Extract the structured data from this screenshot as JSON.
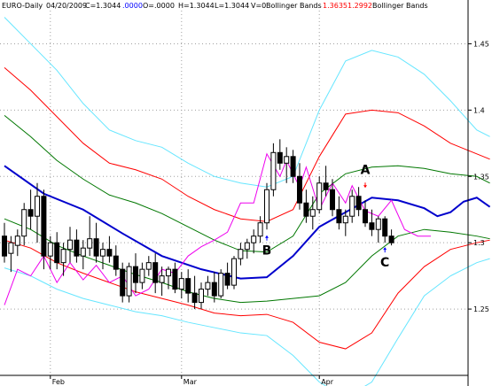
{
  "header": {
    "symbol": "EURO-Daily",
    "date": "04/20/2009",
    "close": "C=1.3044",
    "change": ".0000",
    "open": "O=.0000",
    "high": "H=1.3044",
    "low": "L=1.3044",
    "volume": "V=0",
    "indicator1": "Bollinger Bands",
    "upper_value": "1.3635",
    "lower_value": "1.2992",
    "indicator2": "Bollinger Bands"
  },
  "colors": {
    "blue": "#0000cc",
    "red": "#ff0000",
    "cyan": "#66e6ff",
    "green": "#007700",
    "magenta": "#ee00ee",
    "ann_red": "#ff0000",
    "ann_blue": "#0000ff"
  },
  "chart_data": {
    "type": "candlestick",
    "x_ticks": [
      {
        "label": "Feb",
        "index": 7
      },
      {
        "label": "Mar",
        "index": 27
      },
      {
        "label": "Apr",
        "index": 48
      }
    ],
    "y_ticks": [
      1.25,
      1.3,
      1.35,
      1.4,
      1.45
    ],
    "y_tick_labels": [
      "1.25",
      "1.3",
      "1.35",
      "1.4",
      "1.45"
    ],
    "ylim": [
      1.2,
      1.475
    ],
    "n_bars": 60,
    "candles": [
      [
        1.305,
        1.315,
        1.285,
        1.29
      ],
      [
        1.292,
        1.305,
        1.278,
        1.3
      ],
      [
        1.298,
        1.31,
        1.29,
        1.305
      ],
      [
        1.305,
        1.33,
        1.298,
        1.325
      ],
      [
        1.325,
        1.34,
        1.31,
        1.32
      ],
      [
        1.32,
        1.345,
        1.3,
        1.335
      ],
      [
        1.335,
        1.34,
        1.28,
        1.29
      ],
      [
        1.29,
        1.305,
        1.28,
        1.3
      ],
      [
        1.3,
        1.308,
        1.28,
        1.285
      ],
      [
        1.285,
        1.3,
        1.275,
        1.295
      ],
      [
        1.295,
        1.312,
        1.285,
        1.302
      ],
      [
        1.302,
        1.31,
        1.285,
        1.29
      ],
      [
        1.29,
        1.302,
        1.28,
        1.296
      ],
      [
        1.296,
        1.32,
        1.29,
        1.303
      ],
      [
        1.303,
        1.315,
        1.285,
        1.29
      ],
      [
        1.29,
        1.3,
        1.28,
        1.295
      ],
      [
        1.295,
        1.305,
        1.285,
        1.29
      ],
      [
        1.29,
        1.298,
        1.275,
        1.28
      ],
      [
        1.28,
        1.285,
        1.255,
        1.26
      ],
      [
        1.26,
        1.285,
        1.255,
        1.282
      ],
      [
        1.282,
        1.292,
        1.262,
        1.27
      ],
      [
        1.27,
        1.285,
        1.265,
        1.28
      ],
      [
        1.28,
        1.29,
        1.275,
        1.285
      ],
      [
        1.285,
        1.292,
        1.262,
        1.27
      ],
      [
        1.27,
        1.282,
        1.26,
        1.275
      ],
      [
        1.275,
        1.282,
        1.265,
        1.28
      ],
      [
        1.28,
        1.285,
        1.262,
        1.265
      ],
      [
        1.265,
        1.278,
        1.258,
        1.273
      ],
      [
        1.273,
        1.28,
        1.255,
        1.262
      ],
      [
        1.262,
        1.275,
        1.25,
        1.255
      ],
      [
        1.255,
        1.27,
        1.25,
        1.265
      ],
      [
        1.265,
        1.275,
        1.26,
        1.27
      ],
      [
        1.27,
        1.278,
        1.255,
        1.26
      ],
      [
        1.26,
        1.28,
        1.258,
        1.277
      ],
      [
        1.277,
        1.285,
        1.265,
        1.268
      ],
      [
        1.268,
        1.29,
        1.265,
        1.288
      ],
      [
        1.288,
        1.3,
        1.283,
        1.295
      ],
      [
        1.295,
        1.303,
        1.288,
        1.3
      ],
      [
        1.3,
        1.31,
        1.292,
        1.305
      ],
      [
        1.305,
        1.32,
        1.3,
        1.315
      ],
      [
        1.315,
        1.345,
        1.31,
        1.34
      ],
      [
        1.34,
        1.375,
        1.335,
        1.368
      ],
      [
        1.368,
        1.378,
        1.355,
        1.36
      ],
      [
        1.36,
        1.372,
        1.345,
        1.365
      ],
      [
        1.365,
        1.37,
        1.345,
        1.35
      ],
      [
        1.35,
        1.36,
        1.325,
        1.33
      ],
      [
        1.33,
        1.34,
        1.315,
        1.32
      ],
      [
        1.32,
        1.335,
        1.31,
        1.325
      ],
      [
        1.325,
        1.35,
        1.322,
        1.345
      ],
      [
        1.345,
        1.358,
        1.335,
        1.34
      ],
      [
        1.34,
        1.348,
        1.32,
        1.325
      ],
      [
        1.325,
        1.335,
        1.31,
        1.315
      ],
      [
        1.315,
        1.325,
        1.305,
        1.32
      ],
      [
        1.32,
        1.34,
        1.315,
        1.335
      ],
      [
        1.335,
        1.342,
        1.32,
        1.325
      ],
      [
        1.325,
        1.332,
        1.312,
        1.315
      ],
      [
        1.315,
        1.325,
        1.305,
        1.31
      ],
      [
        1.31,
        1.32,
        1.3,
        1.318
      ],
      [
        1.318,
        1.32,
        1.3,
        1.305
      ],
      [
        1.305,
        1.31,
        1.298,
        1.3
      ]
    ],
    "series": [
      {
        "key": "mid",
        "color_key": "blue",
        "width": 2,
        "values": [
          [
            0,
            1.358
          ],
          [
            6,
            1.337
          ],
          [
            12,
            1.325
          ],
          [
            18,
            1.307
          ],
          [
            24,
            1.29
          ],
          [
            30,
            1.28
          ],
          [
            36,
            1.273
          ],
          [
            40,
            1.274
          ],
          [
            44,
            1.29
          ],
          [
            48,
            1.312
          ],
          [
            52,
            1.323
          ],
          [
            56,
            1.334
          ],
          [
            60,
            1.332
          ],
          [
            64,
            1.326
          ],
          [
            66,
            1.32
          ],
          [
            68,
            1.323
          ],
          [
            70,
            1.331
          ],
          [
            72,
            1.334
          ],
          [
            74,
            1.327
          ]
        ]
      },
      {
        "key": "upper_outer",
        "color_key": "cyan",
        "width": 1,
        "values": [
          [
            0,
            1.47
          ],
          [
            4,
            1.45
          ],
          [
            8,
            1.43
          ],
          [
            12,
            1.405
          ],
          [
            16,
            1.385
          ],
          [
            20,
            1.377
          ],
          [
            24,
            1.372
          ],
          [
            28,
            1.36
          ],
          [
            32,
            1.35
          ],
          [
            36,
            1.345
          ],
          [
            40,
            1.342
          ],
          [
            44,
            1.35
          ],
          [
            48,
            1.4
          ],
          [
            52,
            1.437
          ],
          [
            56,
            1.445
          ],
          [
            60,
            1.44
          ],
          [
            64,
            1.427
          ],
          [
            68,
            1.407
          ],
          [
            72,
            1.385
          ],
          [
            74,
            1.38
          ]
        ]
      },
      {
        "key": "upper_inner",
        "color_key": "red",
        "width": 1,
        "values": [
          [
            0,
            1.432
          ],
          [
            4,
            1.415
          ],
          [
            8,
            1.395
          ],
          [
            12,
            1.375
          ],
          [
            16,
            1.36
          ],
          [
            20,
            1.355
          ],
          [
            24,
            1.348
          ],
          [
            28,
            1.335
          ],
          [
            32,
            1.325
          ],
          [
            36,
            1.318
          ],
          [
            40,
            1.316
          ],
          [
            44,
            1.325
          ],
          [
            48,
            1.365
          ],
          [
            52,
            1.397
          ],
          [
            56,
            1.4
          ],
          [
            60,
            1.398
          ],
          [
            64,
            1.388
          ],
          [
            68,
            1.375
          ],
          [
            72,
            1.367
          ],
          [
            74,
            1.363
          ]
        ]
      },
      {
        "key": "upper_mid",
        "color_key": "green",
        "width": 1,
        "values": [
          [
            0,
            1.396
          ],
          [
            4,
            1.38
          ],
          [
            8,
            1.362
          ],
          [
            12,
            1.348
          ],
          [
            16,
            1.336
          ],
          [
            20,
            1.33
          ],
          [
            24,
            1.322
          ],
          [
            28,
            1.312
          ],
          [
            32,
            1.302
          ],
          [
            36,
            1.294
          ],
          [
            40,
            1.293
          ],
          [
            44,
            1.305
          ],
          [
            48,
            1.337
          ],
          [
            52,
            1.352
          ],
          [
            56,
            1.357
          ],
          [
            60,
            1.358
          ],
          [
            64,
            1.356
          ],
          [
            68,
            1.352
          ],
          [
            72,
            1.35
          ],
          [
            74,
            1.345
          ]
        ]
      },
      {
        "key": "lower_mid",
        "color_key": "green",
        "width": 1,
        "values": [
          [
            0,
            1.318
          ],
          [
            4,
            1.31
          ],
          [
            8,
            1.298
          ],
          [
            12,
            1.29
          ],
          [
            16,
            1.283
          ],
          [
            20,
            1.276
          ],
          [
            24,
            1.27
          ],
          [
            28,
            1.263
          ],
          [
            32,
            1.258
          ],
          [
            36,
            1.255
          ],
          [
            40,
            1.256
          ],
          [
            44,
            1.258
          ],
          [
            48,
            1.26
          ],
          [
            52,
            1.27
          ],
          [
            56,
            1.29
          ],
          [
            60,
            1.305
          ],
          [
            64,
            1.31
          ],
          [
            68,
            1.308
          ],
          [
            72,
            1.305
          ],
          [
            74,
            1.303
          ]
        ]
      },
      {
        "key": "lower_inner",
        "color_key": "red",
        "width": 1,
        "values": [
          [
            0,
            1.302
          ],
          [
            4,
            1.296
          ],
          [
            8,
            1.285
          ],
          [
            12,
            1.277
          ],
          [
            16,
            1.27
          ],
          [
            20,
            1.263
          ],
          [
            24,
            1.258
          ],
          [
            28,
            1.253
          ],
          [
            32,
            1.247
          ],
          [
            36,
            1.245
          ],
          [
            40,
            1.246
          ],
          [
            44,
            1.24
          ],
          [
            48,
            1.225
          ],
          [
            52,
            1.22
          ],
          [
            56,
            1.232
          ],
          [
            60,
            1.262
          ],
          [
            64,
            1.282
          ],
          [
            68,
            1.295
          ],
          [
            72,
            1.3
          ],
          [
            74,
            1.302
          ]
        ]
      },
      {
        "key": "lower_outer",
        "color_key": "cyan",
        "width": 1,
        "values": [
          [
            0,
            1.281
          ],
          [
            4,
            1.275
          ],
          [
            8,
            1.265
          ],
          [
            12,
            1.258
          ],
          [
            16,
            1.253
          ],
          [
            20,
            1.248
          ],
          [
            24,
            1.245
          ],
          [
            28,
            1.24
          ],
          [
            32,
            1.236
          ],
          [
            36,
            1.232
          ],
          [
            40,
            1.23
          ],
          [
            44,
            1.215
          ],
          [
            48,
            1.195
          ],
          [
            52,
            1.183
          ],
          [
            56,
            1.195
          ],
          [
            60,
            1.228
          ],
          [
            64,
            1.26
          ],
          [
            68,
            1.275
          ],
          [
            72,
            1.285
          ],
          [
            74,
            1.288
          ]
        ]
      },
      {
        "key": "magenta",
        "color_key": "magenta",
        "width": 1,
        "values": [
          [
            0,
            1.253
          ],
          [
            2,
            1.28
          ],
          [
            4,
            1.275
          ],
          [
            6,
            1.29
          ],
          [
            8,
            1.27
          ],
          [
            10,
            1.285
          ],
          [
            12,
            1.272
          ],
          [
            14,
            1.283
          ],
          [
            16,
            1.27
          ],
          [
            18,
            1.275
          ],
          [
            20,
            1.26
          ],
          [
            22,
            1.265
          ],
          [
            24,
            1.28
          ],
          [
            26,
            1.277
          ],
          [
            28,
            1.29
          ],
          [
            30,
            1.297
          ],
          [
            32,
            1.302
          ],
          [
            34,
            1.308
          ],
          [
            36,
            1.33
          ],
          [
            38,
            1.33
          ],
          [
            40,
            1.367
          ],
          [
            42,
            1.35
          ],
          [
            43,
            1.362
          ],
          [
            45,
            1.342
          ],
          [
            46,
            1.357
          ],
          [
            48,
            1.325
          ],
          [
            50,
            1.345
          ],
          [
            52,
            1.33
          ],
          [
            53,
            1.343
          ],
          [
            55,
            1.324
          ],
          [
            57,
            1.32
          ],
          [
            59,
            1.332
          ],
          [
            61,
            1.31
          ],
          [
            63,
            1.305
          ],
          [
            65,
            1.305
          ]
        ]
      }
    ],
    "annotations": [
      {
        "label": "A",
        "bar": 55,
        "price": 1.352,
        "arrow_color_key": "ann_red",
        "arrow_dir": "down",
        "arrow_price": 1.342
      },
      {
        "label": "B",
        "bar": 40,
        "price": 1.291,
        "arrow_color_key": "ann_blue",
        "arrow_dir": "up",
        "arrow_price": 1.305
      },
      {
        "label": "C",
        "bar": 58,
        "price": 1.282,
        "arrow_color_key": "ann_blue",
        "arrow_dir": "up",
        "arrow_price": 1.296
      }
    ]
  }
}
